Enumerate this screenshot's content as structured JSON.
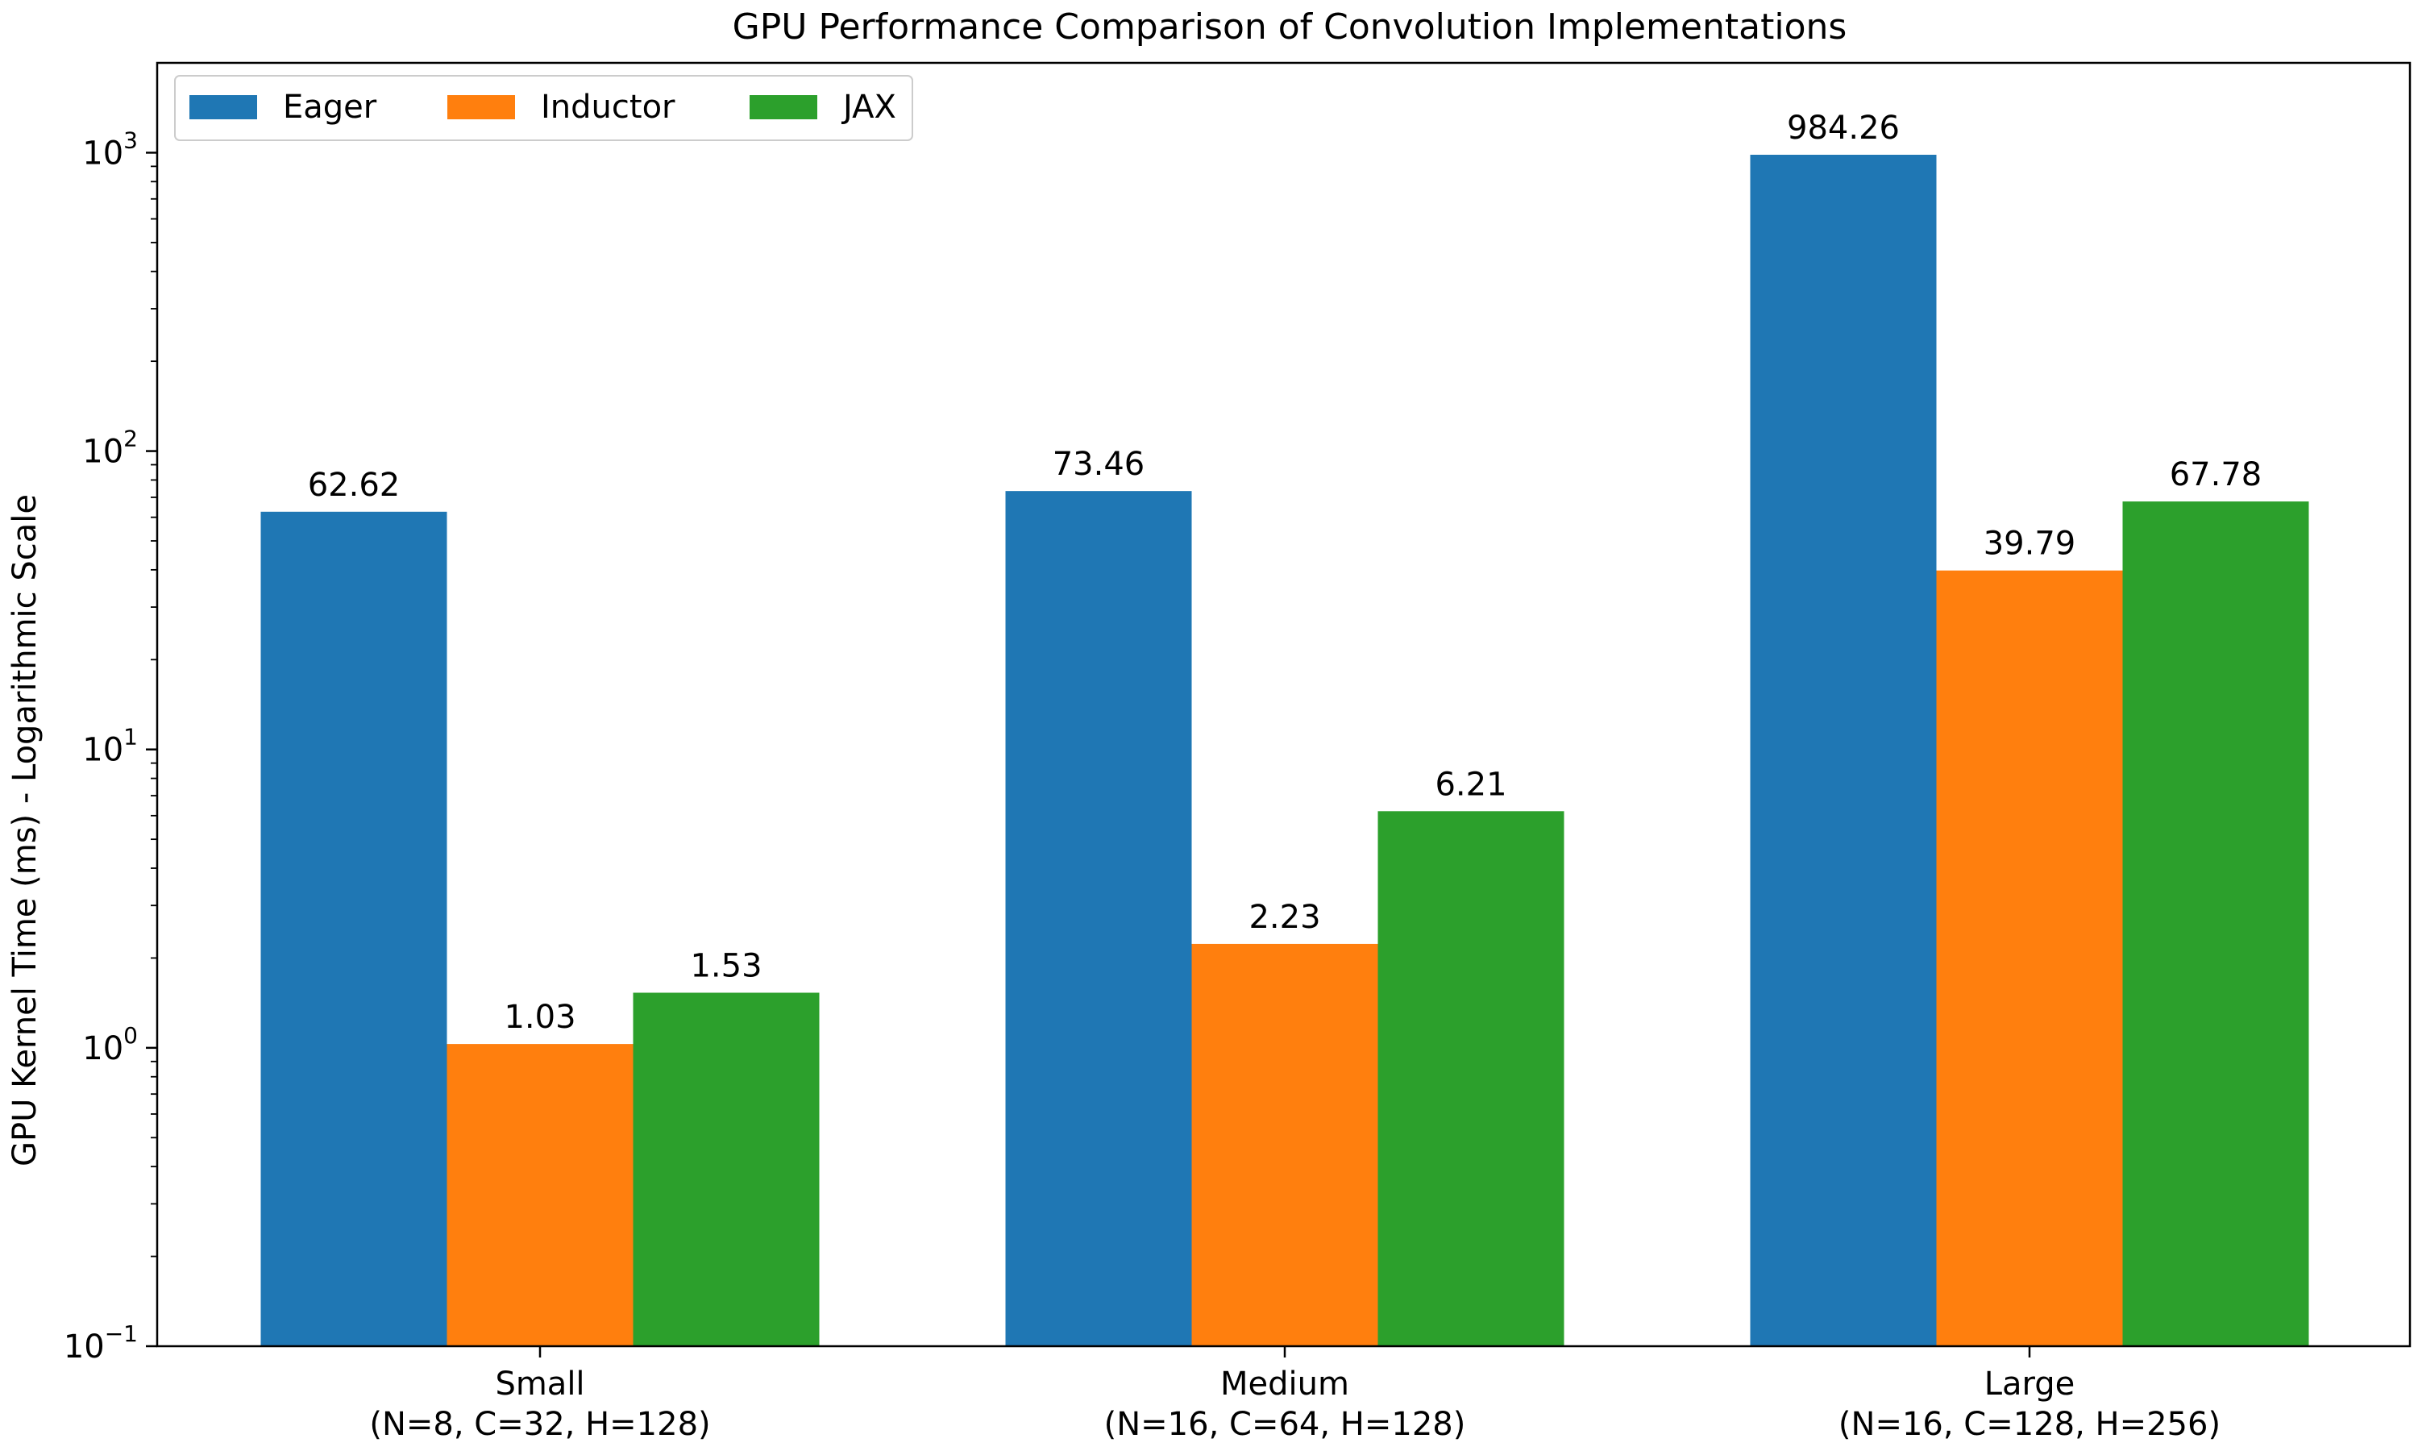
{
  "chart_data": {
    "type": "bar",
    "title": "GPU Performance Comparison of Convolution Implementations",
    "xlabel": "",
    "ylabel": "GPU Kernel Time (ms) - Logarithmic Scale",
    "yscale": "log",
    "ylim": [
      0.1,
      2000
    ],
    "yticks": [
      {
        "value": 0.1,
        "base": "10",
        "exp": "−1"
      },
      {
        "value": 1,
        "base": "10",
        "exp": "0"
      },
      {
        "value": 10,
        "base": "10",
        "exp": "1"
      },
      {
        "value": 100,
        "base": "10",
        "exp": "2"
      },
      {
        "value": 1000,
        "base": "10",
        "exp": "3"
      }
    ],
    "categories": [
      {
        "name": "Small",
        "detail": "(N=8, C=32, H=128)"
      },
      {
        "name": "Medium",
        "detail": "(N=16, C=64, H=128)"
      },
      {
        "name": "Large",
        "detail": "(N=16, C=128, H=256)"
      }
    ],
    "series": [
      {
        "name": "Eager",
        "color": "#1f77b4",
        "values": [
          62.62,
          73.46,
          984.26
        ],
        "labels": [
          "62.62",
          "73.46",
          "984.26"
        ]
      },
      {
        "name": "Inductor",
        "color": "#ff7f0e",
        "values": [
          1.03,
          2.23,
          39.79
        ],
        "labels": [
          "1.03",
          "2.23",
          "39.79"
        ]
      },
      {
        "name": "JAX",
        "color": "#2ca02c",
        "values": [
          1.53,
          6.21,
          67.78
        ],
        "labels": [
          "1.53",
          "6.21",
          "67.78"
        ]
      }
    ],
    "legend": {
      "position": "top-left",
      "columns": 3
    },
    "grid": false
  }
}
